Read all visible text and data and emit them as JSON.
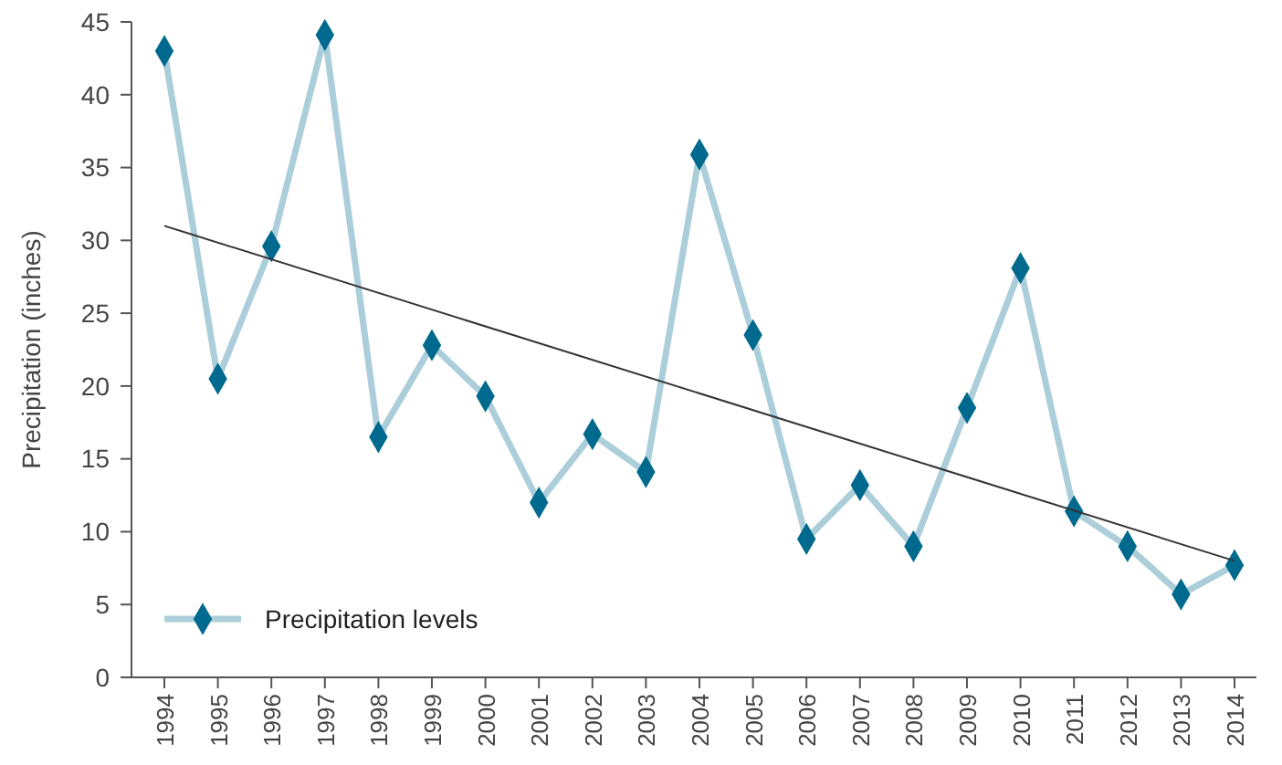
{
  "chart_data": {
    "type": "line",
    "ylabel": "Precipitation (inches)",
    "categories": [
      "1994",
      "1995",
      "1996",
      "1997",
      "1998",
      "1999",
      "2000",
      "2001",
      "2002",
      "2003",
      "2004",
      "2005",
      "2006",
      "2007",
      "2008",
      "2009",
      "2010",
      "2011",
      "2012",
      "2013",
      "2014"
    ],
    "series": [
      {
        "name": "Precipitation levels",
        "color": "#006a8e",
        "marker": "diamond",
        "values": [
          43,
          20.5,
          29.6,
          44.1,
          16.5,
          22.8,
          19.3,
          12,
          16.7,
          14.1,
          35.9,
          23.5,
          9.5,
          13.2,
          9,
          18.5,
          28.1,
          11.4,
          9,
          5.7,
          7.7
        ]
      },
      {
        "type": "line",
        "color": "#333333",
        "marker": "none",
        "values": [
          31,
          null,
          null,
          null,
          null,
          null,
          null,
          null,
          null,
          null,
          null,
          null,
          null,
          null,
          null,
          null,
          null,
          null,
          null,
          null,
          8
        ]
      }
    ],
    "ylim": [
      0,
      45
    ],
    "yticks": [
      0,
      5,
      10,
      15,
      20,
      25,
      30,
      35,
      40,
      45
    ],
    "grid": false,
    "legend": "bottom left"
  }
}
